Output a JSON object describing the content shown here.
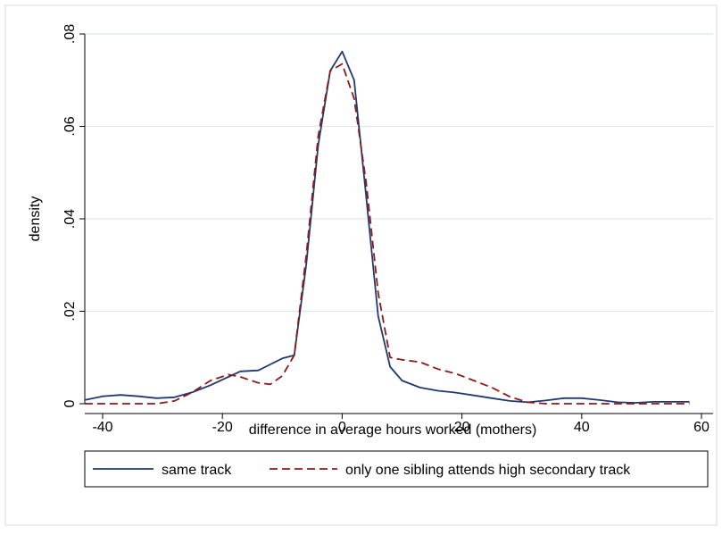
{
  "chart_data": {
    "type": "line",
    "title": "",
    "xlabel": "difference in average hours worked (mothers)",
    "ylabel": "density",
    "xlim": [
      -43,
      58
    ],
    "ylim": [
      0,
      0.08
    ],
    "x_ticks": [
      -40,
      -20,
      0,
      20,
      40,
      60
    ],
    "x_tick_labels": [
      "-40",
      "-20",
      "0",
      "20",
      "40",
      "60"
    ],
    "y_ticks": [
      0,
      0.02,
      0.04,
      0.06,
      0.08
    ],
    "y_tick_labels": [
      "0",
      ".02",
      ".04",
      ".06",
      ".08"
    ],
    "grid": "horizontal",
    "legend_position": "bottom",
    "series": [
      {
        "name": "same track",
        "color": "#1f3a6e",
        "style": "solid",
        "x": [
          -43,
          -40,
          -37,
          -34,
          -31,
          -28,
          -25,
          -22,
          -19,
          -17,
          -14,
          -12,
          -10,
          -8,
          -6,
          -4,
          -2,
          0,
          2,
          4,
          6,
          8,
          10,
          13,
          16,
          19,
          22,
          25,
          28,
          31,
          34,
          37,
          40,
          43,
          46,
          49,
          52,
          55,
          58
        ],
        "y": [
          0.0008,
          0.0016,
          0.0019,
          0.0016,
          0.0012,
          0.0014,
          0.0025,
          0.004,
          0.0058,
          0.007,
          0.0072,
          0.0085,
          0.0098,
          0.0105,
          0.03,
          0.056,
          0.072,
          0.0762,
          0.07,
          0.045,
          0.019,
          0.008,
          0.005,
          0.0035,
          0.0028,
          0.0024,
          0.0018,
          0.0012,
          0.0006,
          0.0003,
          0.0007,
          0.0012,
          0.0012,
          0.0008,
          0.0003,
          0.0002,
          0.0004,
          0.0004,
          0.0004
        ]
      },
      {
        "name": "only one sibling attends high secondary track",
        "color": "#8b1a1a",
        "style": "dashed",
        "x": [
          -43,
          -40,
          -37,
          -34,
          -31,
          -28,
          -25,
          -22,
          -19,
          -17,
          -14,
          -12,
          -10,
          -8,
          -6,
          -4,
          -2,
          0,
          2,
          4,
          6,
          8,
          10,
          13,
          16,
          19,
          22,
          25,
          28,
          31,
          34,
          37,
          40,
          43,
          46,
          49,
          52,
          55,
          58
        ],
        "y": [
          0,
          0,
          0,
          0,
          0,
          0.0006,
          0.0025,
          0.005,
          0.0063,
          0.0058,
          0.0045,
          0.0042,
          0.006,
          0.0105,
          0.032,
          0.058,
          0.072,
          0.0735,
          0.066,
          0.048,
          0.024,
          0.01,
          0.0095,
          0.009,
          0.0075,
          0.0065,
          0.005,
          0.0035,
          0.0015,
          0.0003,
          0,
          0,
          0,
          0,
          0,
          0,
          0,
          0,
          0
        ]
      }
    ]
  }
}
